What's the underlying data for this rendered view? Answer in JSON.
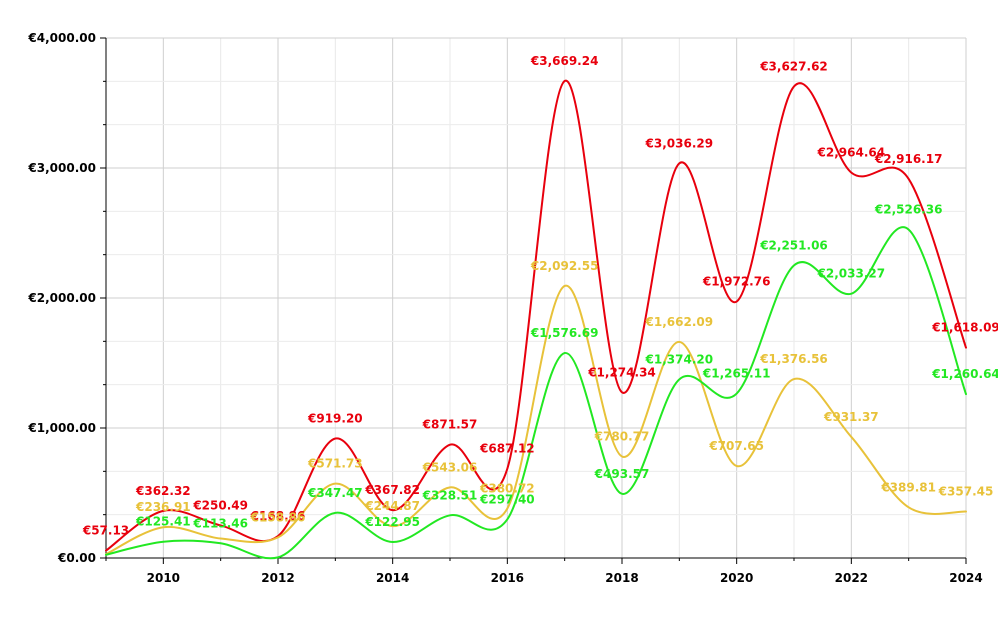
{
  "chart_data": {
    "type": "line",
    "x": [
      2009,
      2010,
      2011,
      2012,
      2013,
      2014,
      2015,
      2016,
      2017,
      2018,
      2019,
      2020,
      2021,
      2022,
      2023,
      2024
    ],
    "xticks": [
      2010,
      2012,
      2014,
      2016,
      2018,
      2020,
      2022,
      2024
    ],
    "xtick_labels": [
      "2010",
      "2012",
      "2014",
      "2016",
      "2018",
      "2020",
      "2022",
      "2024"
    ],
    "xlim": [
      2009,
      2024
    ],
    "ylim": [
      0,
      4000
    ],
    "yticks": [
      0,
      1000,
      2000,
      3000,
      4000
    ],
    "ytick_labels": [
      "€0.00",
      "€1,000.00",
      "€2,000.00",
      "€3,000.00",
      "€4,000.00"
    ],
    "grid": true,
    "legend": "none",
    "title": "",
    "xlabel": "",
    "ylabel": "",
    "series": [
      {
        "color": "#e8000d",
        "values": [
          57.13,
          362.32,
          250.49,
          168.86,
          919.2,
          367.82,
          871.57,
          687.12,
          3669.24,
          1274.34,
          3036.29,
          1972.76,
          3627.62,
          2964.64,
          2916.17,
          1618.09
        ],
        "labels": [
          "€57.13",
          "€362.32",
          "€250.49",
          "€168.86",
          "€919.20",
          "€367.82",
          "€871.57",
          "€687.12",
          "€3,669.24",
          "€1,274.34",
          "€3,036.29",
          "€1,972.76",
          "€3,627.62",
          "€2,964.64",
          "€2,916.17",
          "€1,618.09"
        ]
      },
      {
        "color": "#e8c23a",
        "values": [
          30.0,
          236.91,
          150.0,
          158.86,
          571.73,
          244.87,
          543.06,
          380.72,
          2092.55,
          780.77,
          1662.09,
          707.65,
          1376.56,
          931.37,
          389.81,
          357.45
        ],
        "labels": [
          "",
          "€236.91",
          "",
          "€158.86",
          "€571.73",
          "€244.87",
          "€543.06",
          "€380.72",
          "€2,092.55",
          "€780.77",
          "€1,662.09",
          "€707.65",
          "€1,376.56",
          "€931.37",
          "€389.81",
          "€357.45"
        ]
      },
      {
        "color": "#22e822",
        "values": [
          25.0,
          125.41,
          113.46,
          5.0,
          347.47,
          122.95,
          328.51,
          297.4,
          1576.69,
          493.57,
          1374.2,
          1265.11,
          2251.06,
          2033.27,
          2526.36,
          1260.64
        ],
        "labels": [
          "",
          "€125.41",
          "€113.46",
          "",
          "€347.47",
          "€122.95",
          "€328.51",
          "€297.40",
          "€1,576.69",
          "€493.57",
          "€1,374.20",
          "€1,265.11",
          "€2,251.06",
          "€2,033.27",
          "€2,526.36",
          "€1,260.64"
        ]
      }
    ]
  }
}
